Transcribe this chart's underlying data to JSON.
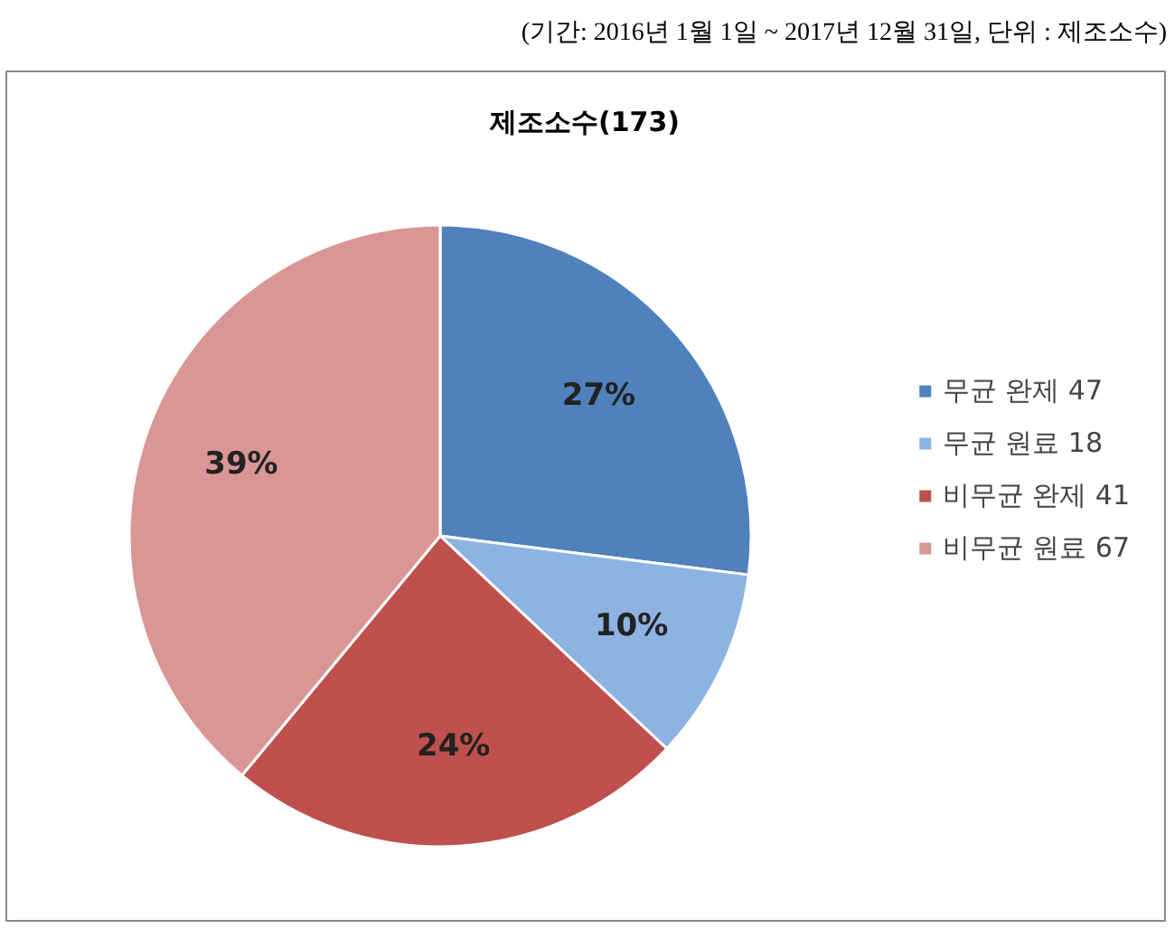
{
  "chart_data": {
    "type": "pie",
    "title": "제조소수(173)",
    "categories": [
      "무균 완제 47",
      "무균 원료 18",
      "비무균 완제 41",
      "비무균 원료 67"
    ],
    "values": [
      27,
      10,
      24,
      39
    ],
    "colors": [
      "#4f81bd",
      "#8db3e2",
      "#c0504d",
      "#d99694"
    ],
    "value_labels": [
      "27%",
      "10%",
      "24%",
      "39%"
    ],
    "legend": "right",
    "annotations": [
      "(기간: 2016년 1월 1일 ~ 2017년 12월 31일, 단위 : 제조소수)"
    ]
  }
}
